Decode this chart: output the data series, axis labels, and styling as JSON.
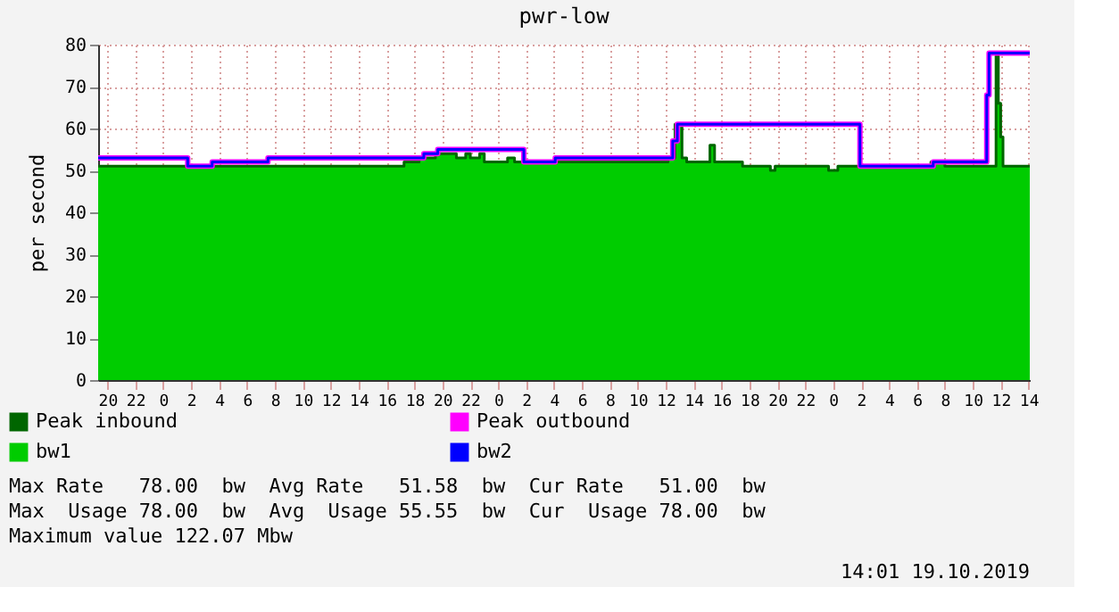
{
  "chart_data": {
    "type": "area",
    "title": "pwr-low",
    "ylabel": "per second",
    "xlim": [
      "2019-10-16T19:20",
      "2019-10-19T14:05"
    ],
    "xticks": [
      {
        "value": "2019-10-16T20:00",
        "label": "20"
      },
      {
        "value": "2019-10-16T22:00",
        "label": "22"
      },
      {
        "value": "2019-10-17T00:00",
        "label": "0"
      },
      {
        "value": "2019-10-17T02:00",
        "label": "2"
      },
      {
        "value": "2019-10-17T04:00",
        "label": "4"
      },
      {
        "value": "2019-10-17T06:00",
        "label": "6"
      },
      {
        "value": "2019-10-17T08:00",
        "label": "8"
      },
      {
        "value": "2019-10-17T10:00",
        "label": "10"
      },
      {
        "value": "2019-10-17T12:00",
        "label": "12"
      },
      {
        "value": "2019-10-17T14:00",
        "label": "14"
      },
      {
        "value": "2019-10-17T16:00",
        "label": "16"
      },
      {
        "value": "2019-10-17T18:00",
        "label": "18"
      },
      {
        "value": "2019-10-17T20:00",
        "label": "20"
      },
      {
        "value": "2019-10-17T22:00",
        "label": "22"
      },
      {
        "value": "2019-10-18T00:00",
        "label": "0"
      },
      {
        "value": "2019-10-18T02:00",
        "label": "2"
      },
      {
        "value": "2019-10-18T04:00",
        "label": "4"
      },
      {
        "value": "2019-10-18T06:00",
        "label": "6"
      },
      {
        "value": "2019-10-18T08:00",
        "label": "8"
      },
      {
        "value": "2019-10-18T10:00",
        "label": "10"
      },
      {
        "value": "2019-10-18T12:00",
        "label": "12"
      },
      {
        "value": "2019-10-18T14:00",
        "label": "14"
      },
      {
        "value": "2019-10-18T16:00",
        "label": "16"
      },
      {
        "value": "2019-10-18T18:00",
        "label": "18"
      },
      {
        "value": "2019-10-18T20:00",
        "label": "20"
      },
      {
        "value": "2019-10-18T22:00",
        "label": "22"
      },
      {
        "value": "2019-10-19T00:00",
        "label": "0"
      },
      {
        "value": "2019-10-19T02:00",
        "label": "2"
      },
      {
        "value": "2019-10-19T04:00",
        "label": "4"
      },
      {
        "value": "2019-10-19T06:00",
        "label": "6"
      },
      {
        "value": "2019-10-19T08:00",
        "label": "8"
      },
      {
        "value": "2019-10-19T10:00",
        "label": "10"
      },
      {
        "value": "2019-10-19T12:00",
        "label": "12"
      },
      {
        "value": "2019-10-19T14:00",
        "label": "14"
      }
    ],
    "ylim": [
      0,
      80
    ],
    "yticks": [
      0,
      10,
      20,
      30,
      40,
      50,
      60,
      70,
      80
    ],
    "grid": true,
    "legend": "bottom left",
    "series": [
      {
        "name": "Peak inbound",
        "color": "#006600",
        "type": "step",
        "x": [
          "2019-10-16T19:20",
          "2019-10-17T17:15",
          "2019-10-17T18:20",
          "2019-10-17T19:30",
          "2019-10-17T21:00",
          "2019-10-17T21:40",
          "2019-10-17T22:00",
          "2019-10-17T22:40",
          "2019-10-17T23:00",
          "2019-10-18T00:40",
          "2019-10-18T01:10",
          "2019-10-18T12:10",
          "2019-10-18T12:40",
          "2019-10-18T13:10",
          "2019-10-18T13:30",
          "2019-10-18T15:10",
          "2019-10-18T15:30",
          "2019-10-18T17:30",
          "2019-10-18T19:30",
          "2019-10-18T19:50",
          "2019-10-18T23:40",
          "2019-10-19T00:20",
          "2019-10-19T07:00",
          "2019-10-19T08:00",
          "2019-10-19T11:40",
          "2019-10-19T11:50",
          "2019-10-19T12:00",
          "2019-10-19T12:10",
          "2019-10-19T14:05"
        ],
        "values": [
          51,
          52,
          53,
          54,
          53,
          54,
          53,
          54,
          52,
          53,
          52,
          53,
          61,
          53,
          52,
          56,
          52,
          51,
          50,
          51,
          50,
          51,
          52,
          51,
          78,
          66,
          58,
          51,
          51
        ]
      },
      {
        "name": "bw1",
        "color": "#00cc00",
        "x": [
          "2019-10-16T19:20",
          "2019-10-17T17:15",
          "2019-10-17T18:20",
          "2019-10-17T19:30",
          "2019-10-17T21:00",
          "2019-10-17T21:40",
          "2019-10-17T22:00",
          "2019-10-17T22:40",
          "2019-10-17T23:00",
          "2019-10-18T00:40",
          "2019-10-18T01:10",
          "2019-10-18T12:10",
          "2019-10-18T12:40",
          "2019-10-18T13:10",
          "2019-10-18T13:30",
          "2019-10-18T15:10",
          "2019-10-18T15:30",
          "2019-10-18T17:30",
          "2019-10-18T19:30",
          "2019-10-18T19:50",
          "2019-10-18T23:40",
          "2019-10-19T00:20",
          "2019-10-19T07:00",
          "2019-10-19T08:00",
          "2019-10-19T11:40",
          "2019-10-19T11:50",
          "2019-10-19T12:00",
          "2019-10-19T12:10",
          "2019-10-19T14:05"
        ],
        "values": [
          51,
          52,
          53,
          54,
          53,
          54,
          53,
          54,
          52,
          53,
          52,
          53,
          61,
          53,
          52,
          56,
          52,
          51,
          50,
          51,
          50,
          51,
          52,
          51,
          78,
          66,
          58,
          51,
          51
        ]
      },
      {
        "name": "Peak outbound",
        "color": "#ff00ff",
        "type": "step",
        "x": [
          "2019-10-16T19:20",
          "2019-10-17T01:45",
          "2019-10-17T03:30",
          "2019-10-17T07:30",
          "2019-10-17T18:40",
          "2019-10-17T19:40",
          "2019-10-18T01:50",
          "2019-10-18T04:05",
          "2019-10-18T12:30",
          "2019-10-18T12:50",
          "2019-10-19T01:55",
          "2019-10-19T07:10",
          "2019-10-19T11:00",
          "2019-10-19T11:10",
          "2019-10-19T14:05"
        ],
        "values": [
          53,
          51,
          52,
          53,
          54,
          55,
          52,
          53,
          57,
          61,
          51,
          52,
          68,
          78,
          78
        ]
      },
      {
        "name": "bw2",
        "color": "#0000ff",
        "type": "step",
        "x": [
          "2019-10-16T19:20",
          "2019-10-17T01:45",
          "2019-10-17T03:30",
          "2019-10-17T07:30",
          "2019-10-17T18:40",
          "2019-10-17T19:40",
          "2019-10-18T01:50",
          "2019-10-18T04:05",
          "2019-10-18T12:30",
          "2019-10-18T12:50",
          "2019-10-19T01:55",
          "2019-10-19T07:10",
          "2019-10-19T11:00",
          "2019-10-19T11:10",
          "2019-10-19T14:05"
        ],
        "values": [
          53,
          51,
          52,
          53,
          54,
          55,
          52,
          53,
          57,
          61,
          51,
          52,
          68,
          78,
          78
        ]
      }
    ],
    "annotations": [
      "Max Rate   78.00  bw  Avg Rate   51.58  bw  Cur Rate   51.00  bw",
      "Max  Usage 78.00  bw  Avg  Usage 55.55  bw  Cur  Usage 78.00  bw",
      "Maximum value 122.07 Mbw",
      "14:01 19.10.2019"
    ]
  }
}
